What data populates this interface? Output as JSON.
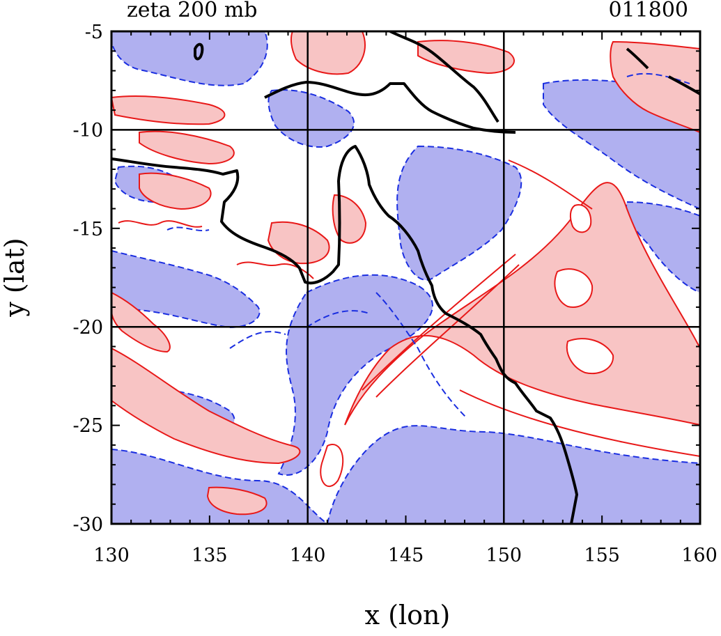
{
  "header": {
    "title": "zeta 200 mb",
    "timestamp": "011800"
  },
  "axes": {
    "xlabel": "x (lon)",
    "ylabel": "y (lat)",
    "xlim": [
      130,
      160
    ],
    "ylim": [
      -30,
      -5
    ],
    "xticks": [
      "130",
      "135",
      "140",
      "145",
      "150",
      "155",
      "160"
    ],
    "yticks": [
      "-5",
      "-10",
      "-15",
      "-20",
      "-25",
      "-30"
    ],
    "grid_lon": [
      140,
      150
    ],
    "grid_lat": [
      -10,
      -20
    ]
  },
  "colors": {
    "positive_fill": "#f8c4c4",
    "positive_line": "#e81818",
    "negative_fill": "#b0b0f0",
    "negative_line": "#1a2ee0",
    "coastline": "#000000",
    "grid": "#000000"
  },
  "legend": "none"
}
